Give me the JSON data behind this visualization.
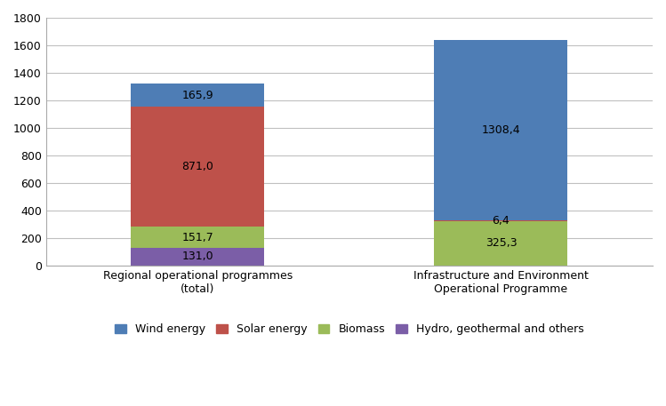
{
  "categories": [
    "Regional operational programmes\n(total)",
    "Infrastructure and Environment\nOperational Programme"
  ],
  "segments": [
    {
      "label": "Hydro, geothermal and others",
      "color": "#7B5EA7",
      "values": [
        131.0,
        0.0
      ]
    },
    {
      "label": "Biomass",
      "color": "#9BBB59",
      "values": [
        151.7,
        325.3
      ]
    },
    {
      "label": "Solar energy",
      "color": "#BE514A",
      "values": [
        871.0,
        6.4
      ]
    },
    {
      "label": "Wind energy",
      "color": "#4E7DB5",
      "values": [
        165.9,
        1308.4
      ]
    }
  ],
  "bar_label_texts": [
    [
      "131,0",
      "151,7",
      "871,0",
      "165,9"
    ],
    [
      "",
      "325,3",
      "6,4",
      "1308,4"
    ]
  ],
  "bar_values": [
    [
      131.0,
      151.7,
      871.0,
      165.9
    ],
    [
      0.0,
      325.3,
      6.4,
      1308.4
    ]
  ],
  "ylim": [
    0,
    1800
  ],
  "yticks": [
    0,
    200,
    400,
    600,
    800,
    1000,
    1200,
    1400,
    1600,
    1800
  ],
  "bar_positions": [
    0.25,
    0.75
  ],
  "bar_width": 0.22,
  "figsize": [
    7.49,
    4.57
  ],
  "dpi": 100,
  "legend_order": [
    3,
    2,
    1,
    0
  ],
  "background_color": "#FFFFFF",
  "grid_color": "#C0C0C0",
  "label_fontsize": 9,
  "tick_fontsize": 9,
  "legend_fontsize": 9,
  "xtick_positions": [
    0.25,
    0.75
  ]
}
